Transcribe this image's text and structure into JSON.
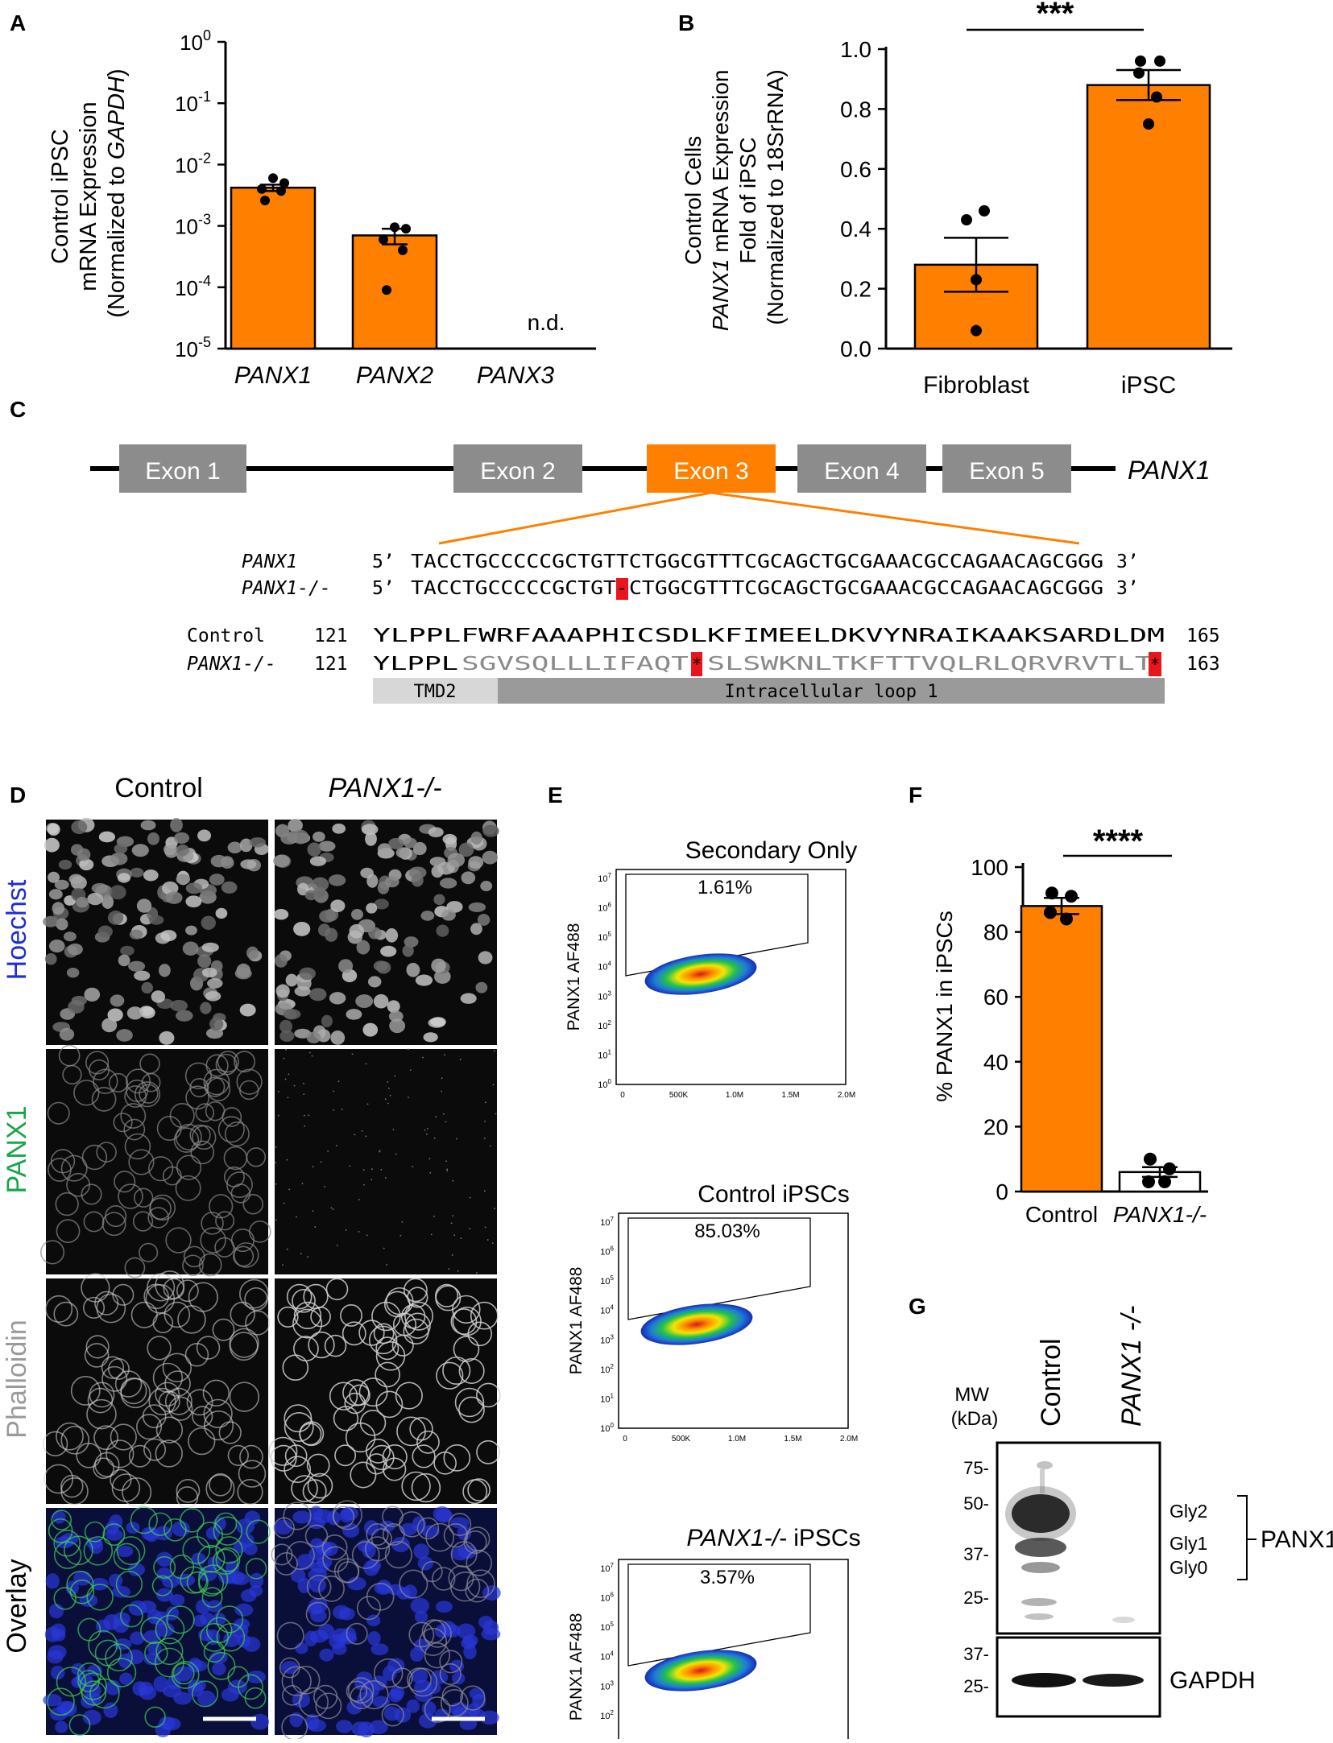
{
  "panel_labels": {
    "A": "A",
    "B": "B",
    "C": "C",
    "D": "D",
    "E": "E",
    "F": "F",
    "G": "G"
  },
  "panelA": {
    "ylabel_line1": "Control iPSC",
    "ylabel_line2": "mRNA Expression",
    "ylabel_line3_prefix": "(Normalized to ",
    "ylabel_line3_gene": "GAPDH",
    "ylabel_line3_suffix": ")",
    "nd_label": "n.d.",
    "ytick_base": "10",
    "ytick_exps": [
      "0",
      "-1",
      "-2",
      "-3",
      "-4",
      "-5"
    ]
  },
  "panelB": {
    "ylabel_line1": "Control Cells",
    "ylabel_line2_gene": "PANX1",
    "ylabel_line2_rest": " mRNA Expression",
    "ylabel_line3": "Fold of iPSC",
    "ylabel_line4": "(Normalized to 18SrRNA)",
    "significance": "***",
    "yticks": [
      "0.0",
      "0.2",
      "0.4",
      "0.6",
      "0.8",
      "1.0"
    ]
  },
  "panelC": {
    "exons": [
      "Exon 1",
      "Exon 2",
      "Exon 3",
      "Exon 4",
      "Exon 5"
    ],
    "gene_label": "PANX1",
    "seq_wt_label": "PANX1",
    "seq_ko_label": "PANX1-/-",
    "five_prime": "5’",
    "three_prime": "3’",
    "seq_wt_a": "TACCTGCCCCCGCTGTTCTGGCGTTTCGCAGCTGCGAAACGCCAGAACAGCGGG",
    "seq_ko_a": "TACCTGCCCCCGCTGT",
    "seq_ko_del": "-",
    "seq_ko_b": "CTGGCGTTTCGCAGCTGCGAAACGCCAGAACAGCGGG",
    "aa_ctrl_label": "Control",
    "aa_ctrl_start": "121",
    "aa_ctrl_seq": "YLPPLFWRFAAAPHICSDLKFIMEELDKVYNRAIKAAKSARDLDM",
    "aa_ctrl_end": "165",
    "aa_ko_label": "PANX1-/-",
    "aa_ko_start": "121",
    "aa_ko_seq1": "YLPPL",
    "aa_ko_seq2": "SGVSQLLLIFAQT",
    "aa_ko_stop1": "*",
    "aa_ko_seq3": "SLSWKNLTKFTTVQLRLQRVRVTLT",
    "aa_ko_stop2": "*",
    "aa_ko_end": "163",
    "domain1": "TMD2",
    "domain2": "Intracellular loop 1"
  },
  "panelD": {
    "col1": "Control",
    "col2": "PANX1-/-",
    "rows": [
      "Hoechst",
      "PANX1",
      "Phalloidin",
      "Overlay"
    ],
    "row_colors": [
      "#1f2fd0",
      "#19a54a",
      "#9a9a9a",
      "#000000"
    ]
  },
  "panelE": {
    "plots": [
      {
        "title": "Secondary Only",
        "title_italic": "",
        "pct": "1.61%"
      },
      {
        "title": "Control iPSCs",
        "title_italic": "",
        "pct": "85.03%"
      },
      {
        "title": " iPSCs",
        "title_italic": "PANX1-/-",
        "pct": "3.57%"
      }
    ],
    "ylabel": "PANX1 AF488",
    "yticks": [
      "0",
      "1",
      "2",
      "3",
      "4",
      "5",
      "6",
      "7"
    ],
    "xticks": [
      "0",
      "500K",
      "1.0M",
      "1.5M",
      "2.0M"
    ]
  },
  "panelF": {
    "ylabel": "% PANX1 in iPSCs",
    "significance": "****",
    "yticks": [
      "0",
      "20",
      "40",
      "60",
      "80",
      "100"
    ]
  },
  "panelG": {
    "mw_label_line1": "MW",
    "mw_label_line2": "(kDa)",
    "lane1": "Control",
    "lane2": "PANX1 -/-",
    "markers_top": [
      "75-",
      "50-",
      "37-",
      "25-"
    ],
    "markers_bottom": [
      "37-",
      "25-"
    ],
    "glyco": [
      "Gly2",
      "Gly1",
      "Gly0"
    ],
    "protein": "PANX1",
    "loading": "GAPDH"
  },
  "chart_data": [
    {
      "type": "bar",
      "panel": "A",
      "categories": [
        "PANX1",
        "PANX2",
        "PANX3"
      ],
      "values": [
        0.0042,
        0.0007,
        null
      ],
      "sem": [
        0.0005,
        0.0002,
        null
      ],
      "points": [
        [
          0.006,
          0.005,
          0.004,
          0.0037,
          0.0026
        ],
        [
          0.00095,
          0.0009,
          0.0006,
          0.0004,
          9e-05
        ],
        []
      ],
      "ylim": [
        1e-05,
        1
      ],
      "yscale": "log",
      "color": "#ff8000"
    },
    {
      "type": "bar",
      "panel": "B",
      "categories": [
        "Fibroblast",
        "iPSC"
      ],
      "values": [
        0.28,
        0.88
      ],
      "sem": [
        0.09,
        0.05
      ],
      "points": [
        [
          0.46,
          0.43,
          0.23,
          0.06
        ],
        [
          0.96,
          0.96,
          0.92,
          0.84,
          0.75
        ]
      ],
      "ylim": [
        0,
        1.0
      ],
      "color": "#ff8000"
    },
    {
      "type": "bar",
      "panel": "F",
      "categories": [
        "Control",
        "PANX1-/-"
      ],
      "values": [
        88,
        6
      ],
      "sem": [
        2.5,
        1.5
      ],
      "points": [
        [
          92,
          91,
          86,
          84
        ],
        [
          10,
          7,
          3,
          3
        ]
      ],
      "ylim": [
        0,
        100
      ],
      "colors": [
        "#ff8000",
        "#ffffff"
      ]
    }
  ]
}
